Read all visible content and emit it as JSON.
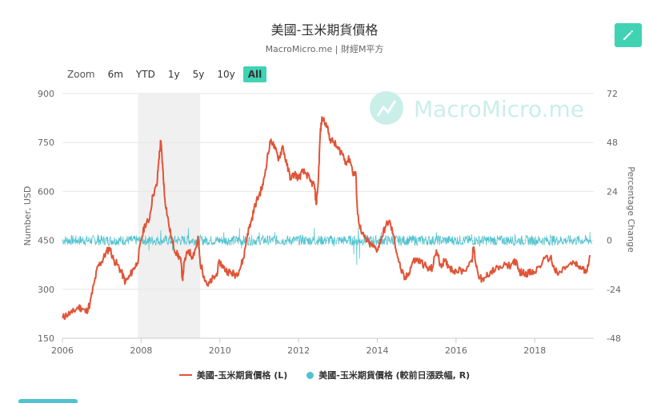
{
  "title": "美國-玉米期貨價格",
  "subtitle": "MacroMicro.me | 財經M平方",
  "watermark": "MacroMicro.me",
  "zoom": {
    "label": "Zoom",
    "options": [
      "6m",
      "YTD",
      "1y",
      "5y",
      "10y",
      "All"
    ],
    "selected": "All",
    "active_color": "#3fd3b4"
  },
  "colors": {
    "price": "#e05437",
    "change": "#4fc3cf",
    "edit_button": "#3fd3b4",
    "recession_band": "#f0f0f0",
    "watermark": "#c9efe8"
  },
  "icons": {
    "edit": "pencil-icon",
    "watermark_logo": "chart-line-icon"
  },
  "chart_data": {
    "type": "line",
    "x_ticks": [
      "2006",
      "2008",
      "2010",
      "2012",
      "2014",
      "2016",
      "2018"
    ],
    "x_range": [
      2006.0,
      2019.5
    ],
    "y_left": {
      "label": "Number, USD",
      "ticks": [
        150,
        300,
        450,
        600,
        750,
        900
      ],
      "range": [
        150,
        900
      ]
    },
    "y_right": {
      "label": "Percentage Change",
      "ticks": [
        -48,
        -24,
        0,
        24,
        48,
        72
      ],
      "range": [
        -48,
        72
      ]
    },
    "shaded_periods": [
      [
        2007.92,
        2009.5
      ]
    ],
    "grid": true,
    "legend_position": "bottom",
    "series": [
      {
        "name": "美國-玉米期貨價格 (L)",
        "axis": "left",
        "type": "line",
        "points": [
          [
            2006.0,
            212
          ],
          [
            2006.1,
            222
          ],
          [
            2006.25,
            228
          ],
          [
            2006.4,
            245
          ],
          [
            2006.5,
            242
          ],
          [
            2006.6,
            230
          ],
          [
            2006.7,
            255
          ],
          [
            2006.8,
            315
          ],
          [
            2006.9,
            370
          ],
          [
            2007.0,
            385
          ],
          [
            2007.1,
            410
          ],
          [
            2007.2,
            428
          ],
          [
            2007.3,
            390
          ],
          [
            2007.4,
            375
          ],
          [
            2007.5,
            352
          ],
          [
            2007.6,
            322
          ],
          [
            2007.7,
            338
          ],
          [
            2007.8,
            362
          ],
          [
            2007.9,
            380
          ],
          [
            2008.0,
            450
          ],
          [
            2008.1,
            500
          ],
          [
            2008.2,
            510
          ],
          [
            2008.3,
            590
          ],
          [
            2008.4,
            618
          ],
          [
            2008.45,
            700
          ],
          [
            2008.5,
            755
          ],
          [
            2008.55,
            670
          ],
          [
            2008.6,
            580
          ],
          [
            2008.7,
            500
          ],
          [
            2008.8,
            440
          ],
          [
            2008.9,
            410
          ],
          [
            2009.0,
            395
          ],
          [
            2009.05,
            330
          ],
          [
            2009.1,
            385
          ],
          [
            2009.2,
            420
          ],
          [
            2009.3,
            400
          ],
          [
            2009.4,
            430
          ],
          [
            2009.45,
            455
          ],
          [
            2009.5,
            380
          ],
          [
            2009.6,
            340
          ],
          [
            2009.7,
            310
          ],
          [
            2009.8,
            330
          ],
          [
            2009.9,
            340
          ],
          [
            2010.0,
            385
          ],
          [
            2010.1,
            365
          ],
          [
            2010.2,
            355
          ],
          [
            2010.3,
            350
          ],
          [
            2010.4,
            345
          ],
          [
            2010.5,
            360
          ],
          [
            2010.6,
            395
          ],
          [
            2010.7,
            470
          ],
          [
            2010.8,
            510
          ],
          [
            2010.9,
            560
          ],
          [
            2011.0,
            590
          ],
          [
            2011.1,
            620
          ],
          [
            2011.2,
            700
          ],
          [
            2011.3,
            760
          ],
          [
            2011.4,
            730
          ],
          [
            2011.5,
            700
          ],
          [
            2011.6,
            740
          ],
          [
            2011.7,
            680
          ],
          [
            2011.8,
            640
          ],
          [
            2011.9,
            655
          ],
          [
            2012.0,
            640
          ],
          [
            2012.1,
            660
          ],
          [
            2012.2,
            655
          ],
          [
            2012.3,
            630
          ],
          [
            2012.4,
            620
          ],
          [
            2012.45,
            560
          ],
          [
            2012.5,
            630
          ],
          [
            2012.55,
            780
          ],
          [
            2012.6,
            825
          ],
          [
            2012.7,
            810
          ],
          [
            2012.8,
            760
          ],
          [
            2012.9,
            750
          ],
          [
            2013.0,
            730
          ],
          [
            2013.1,
            720
          ],
          [
            2013.2,
            690
          ],
          [
            2013.3,
            700
          ],
          [
            2013.4,
            650
          ],
          [
            2013.45,
            660
          ],
          [
            2013.5,
            530
          ],
          [
            2013.6,
            470
          ],
          [
            2013.7,
            455
          ],
          [
            2013.8,
            440
          ],
          [
            2013.9,
            430
          ],
          [
            2014.0,
            422
          ],
          [
            2014.1,
            455
          ],
          [
            2014.2,
            490
          ],
          [
            2014.3,
            510
          ],
          [
            2014.4,
            470
          ],
          [
            2014.5,
            410
          ],
          [
            2014.6,
            360
          ],
          [
            2014.7,
            330
          ],
          [
            2014.8,
            350
          ],
          [
            2014.9,
            385
          ],
          [
            2015.0,
            390
          ],
          [
            2015.1,
            385
          ],
          [
            2015.2,
            375
          ],
          [
            2015.3,
            360
          ],
          [
            2015.4,
            365
          ],
          [
            2015.5,
            420
          ],
          [
            2015.6,
            375
          ],
          [
            2015.7,
            385
          ],
          [
            2015.8,
            375
          ],
          [
            2015.9,
            360
          ],
          [
            2016.0,
            358
          ],
          [
            2016.2,
            356
          ],
          [
            2016.4,
            390
          ],
          [
            2016.45,
            430
          ],
          [
            2016.5,
            380
          ],
          [
            2016.6,
            335
          ],
          [
            2016.7,
            325
          ],
          [
            2016.8,
            345
          ],
          [
            2016.9,
            355
          ],
          [
            2017.0,
            360
          ],
          [
            2017.2,
            370
          ],
          [
            2017.4,
            375
          ],
          [
            2017.5,
            390
          ],
          [
            2017.6,
            355
          ],
          [
            2017.7,
            350
          ],
          [
            2017.8,
            350
          ],
          [
            2017.9,
            350
          ],
          [
            2018.0,
            352
          ],
          [
            2018.2,
            385
          ],
          [
            2018.4,
            400
          ],
          [
            2018.5,
            360
          ],
          [
            2018.6,
            345
          ],
          [
            2018.8,
            370
          ],
          [
            2019.0,
            380
          ],
          [
            2019.1,
            370
          ],
          [
            2019.2,
            365
          ],
          [
            2019.3,
            350
          ],
          [
            2019.4,
            405
          ]
        ]
      },
      {
        "name": "美國-玉米期貨價格 (較前日漲跌幅, R)",
        "axis": "right",
        "type": "line",
        "baseline": 0,
        "typical_amplitude": 2.5,
        "spikes": [
          [
            2006.9,
            3
          ],
          [
            2008.2,
            -5
          ],
          [
            2008.5,
            5
          ],
          [
            2008.8,
            -5
          ],
          [
            2009.2,
            6
          ],
          [
            2009.45,
            -4
          ],
          [
            2010.1,
            4
          ],
          [
            2010.5,
            6
          ],
          [
            2010.55,
            -4
          ],
          [
            2011.0,
            4
          ],
          [
            2011.4,
            4
          ],
          [
            2012.1,
            3
          ],
          [
            2012.4,
            6
          ],
          [
            2012.9,
            -3
          ],
          [
            2013.4,
            -7
          ],
          [
            2013.48,
            -12
          ],
          [
            2013.52,
            6
          ],
          [
            2013.55,
            -9
          ],
          [
            2014.1,
            4
          ],
          [
            2014.4,
            5
          ],
          [
            2015.5,
            4
          ],
          [
            2016.4,
            3
          ],
          [
            2016.6,
            -3
          ],
          [
            2017.5,
            3
          ],
          [
            2018.4,
            3
          ],
          [
            2019.4,
            4
          ]
        ]
      }
    ]
  }
}
